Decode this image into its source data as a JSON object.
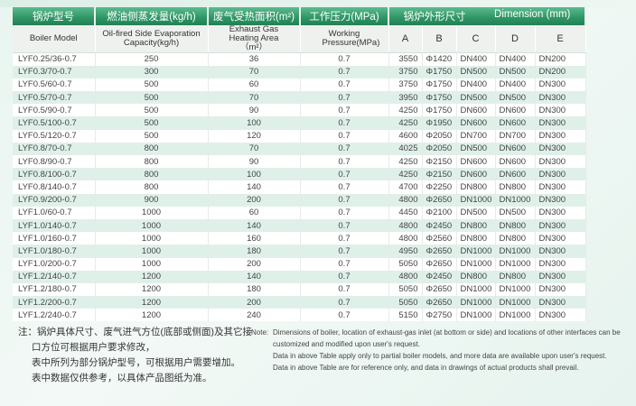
{
  "header_cn": {
    "model": "锅炉型号",
    "capacity": "燃油侧蒸发量(kg/h)",
    "area": "废气受热面积(m²)",
    "pressure": "工作压力(MPa)",
    "dimension_cn": "锅炉外形尺寸",
    "dimension_en": "Dimension (mm)"
  },
  "header_en": {
    "model": "Boiler Model",
    "capacity": "Oil-fired Side Evaporation Capacity(kg/h)",
    "area": "Exhaust Gas Heating Area（m²）",
    "pressure": "Working Pressure(MPa)",
    "A": "A",
    "B": "B",
    "C": "C",
    "D": "D",
    "E": "E"
  },
  "rows": [
    [
      "LYF0.25/36-0.7",
      "250",
      "36",
      "0.7",
      "3550",
      "Φ1420",
      "DN400",
      "DN400",
      "DN200"
    ],
    [
      "LYF0.3/70-0.7",
      "300",
      "70",
      "0.7",
      "3750",
      "Φ1750",
      "DN500",
      "DN500",
      "DN200"
    ],
    [
      "LYF0.5/60-0.7",
      "500",
      "60",
      "0.7",
      "3750",
      "Φ1750",
      "DN400",
      "DN400",
      "DN300"
    ],
    [
      "LYF0.5/70-0.7",
      "500",
      "70",
      "0.7",
      "3950",
      "Φ1750",
      "DN500",
      "DN500",
      "DN300"
    ],
    [
      "LYF0.5/90-0.7",
      "500",
      "90",
      "0.7",
      "4250",
      "Φ1750",
      "DN600",
      "DN600",
      "DN300"
    ],
    [
      "LYF0.5/100-0.7",
      "500",
      "100",
      "0.7",
      "4250",
      "Φ1950",
      "DN600",
      "DN600",
      "DN300"
    ],
    [
      "LYF0.5/120-0.7",
      "500",
      "120",
      "0.7",
      "4600",
      "Φ2050",
      "DN700",
      "DN700",
      "DN300"
    ],
    [
      "LYF0.8/70-0.7",
      "800",
      "70",
      "0.7",
      "4025",
      "Φ2050",
      "DN500",
      "DN600",
      "DN300"
    ],
    [
      "LYF0.8/90-0.7",
      "800",
      "90",
      "0.7",
      "4250",
      "Φ2150",
      "DN600",
      "DN600",
      "DN300"
    ],
    [
      "LYF0.8/100-0.7",
      "800",
      "100",
      "0.7",
      "4250",
      "Φ2150",
      "DN600",
      "DN600",
      "DN300"
    ],
    [
      "LYF0.8/140-0.7",
      "800",
      "140",
      "0.7",
      "4700",
      "Φ2250",
      "DN800",
      "DN800",
      "DN300"
    ],
    [
      "LYF0.9/200-0.7",
      "900",
      "200",
      "0.7",
      "4800",
      "Φ2650",
      "DN1000",
      "DN1000",
      "DN300"
    ],
    [
      "LYF1.0/60-0.7",
      "1000",
      "60",
      "0.7",
      "4450",
      "Φ2100",
      "DN500",
      "DN500",
      "DN300"
    ],
    [
      "LYF1.0/140-0.7",
      "1000",
      "140",
      "0.7",
      "4800",
      "Φ2450",
      "DN800",
      "DN800",
      "DN300"
    ],
    [
      "LYF1.0/160-0.7",
      "1000",
      "160",
      "0.7",
      "4800",
      "Φ2560",
      "DN800",
      "DN800",
      "DN300"
    ],
    [
      "LYF1.0/180-0.7",
      "1000",
      "180",
      "0.7",
      "4950",
      "Φ2650",
      "DN1000",
      "DN1000",
      "DN300"
    ],
    [
      "LYF1.0/200-0.7",
      "1000",
      "200",
      "0.7",
      "5050",
      "Φ2650",
      "DN1000",
      "DN1000",
      "DN300"
    ],
    [
      "LYF1.2/140-0.7",
      "1200",
      "140",
      "0.7",
      "4800",
      "Φ2450",
      "DN800",
      "DN800",
      "DN300"
    ],
    [
      "LYF1.2/180-0.7",
      "1200",
      "180",
      "0.7",
      "5050",
      "Φ2650",
      "DN1000",
      "DN1000",
      "DN300"
    ],
    [
      "LYF1.2/200-0.7",
      "1200",
      "200",
      "0.7",
      "5050",
      "Φ2650",
      "DN1000",
      "DN1000",
      "DN300"
    ],
    [
      "LYF1.2/240-0.7",
      "1200",
      "240",
      "0.7",
      "5150",
      "Φ2750",
      "DN1000",
      "DN1000",
      "DN300"
    ]
  ],
  "notes_cn": [
    "注：锅炉具体尺寸、废气进气方位(底部或侧面)及其它接",
    "口方位可根据用户要求修改，",
    "表中所列为部分锅炉型号，可根据用户需要增加。",
    "表中数据仅供参考，以具体产品图纸为准。"
  ],
  "notes_en": {
    "label": "Note:",
    "lines": [
      "Dimensions of boiler, location of exhaust-gas inlet (at bottom or side) and locations of other interfaces can be customized and modified upon user's request.",
      "Data in above Table apply only to partial boiler models, and more data are available upon user's request.",
      "Data in above Table are for reference only, and data in drawings of actual products shall prevail."
    ]
  },
  "colors": {
    "header_green": "#2d9565",
    "row_alt": "#dff0e9"
  }
}
